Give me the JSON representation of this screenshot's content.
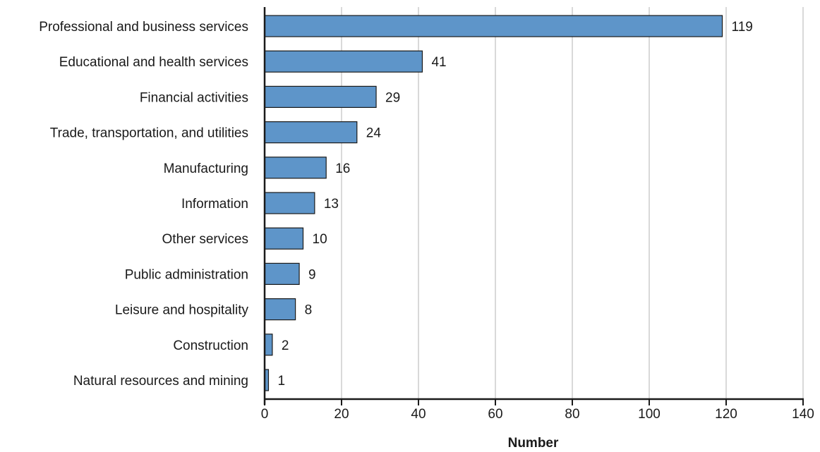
{
  "chart_data": {
    "type": "bar",
    "orientation": "horizontal",
    "categories": [
      "Professional and business services",
      "Educational and health services",
      "Financial activities",
      "Trade, transportation, and utilities",
      "Manufacturing",
      "Information",
      "Other services",
      "Public administration",
      "Leisure and hospitality",
      "Construction",
      "Natural resources and mining"
    ],
    "values": [
      119,
      41,
      29,
      24,
      16,
      13,
      10,
      9,
      8,
      2,
      1
    ],
    "value_labels": [
      "119",
      "41",
      "29",
      "24",
      "16",
      "13",
      "10",
      "9",
      "8",
      "2",
      "1"
    ],
    "xticks": [
      0,
      20,
      40,
      60,
      80,
      100,
      120,
      140
    ],
    "xtick_labels": [
      "0",
      "20",
      "40",
      "60",
      "80",
      "100",
      "120",
      "140"
    ],
    "xlim": [
      0,
      140
    ],
    "xlabel": "Number",
    "ylabel": "",
    "title": "",
    "grid": "vertical",
    "bar_color": "#5e95c9",
    "bar_edge_color": "#1a1a1a",
    "grid_color": "#b3b3b3"
  }
}
